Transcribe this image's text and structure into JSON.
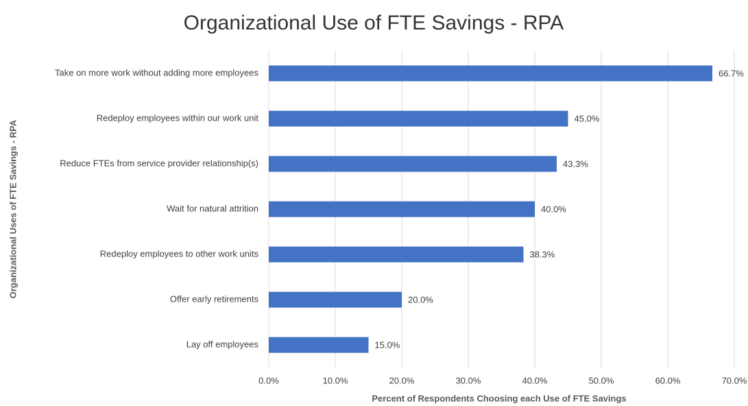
{
  "chart_data": {
    "type": "hbar",
    "title": "Organizational Use of FTE Savings - RPA",
    "x_label": "Percent of Respondents Choosing each Use of FTE Savings",
    "y_label": "Organizational Uses of FTE Savings - RPA",
    "categories": [
      "Take on more work without adding more employees",
      "Redeploy employees within our work unit",
      "Reduce FTEs from service provider relationship(s)",
      "Wait for natural attrition",
      "Redeploy employees to other work units",
      "Offer early retirements",
      "Lay off employees"
    ],
    "values": [
      66.7,
      45.0,
      43.3,
      40.0,
      38.3,
      20.0,
      15.0
    ],
    "value_labels": [
      "66.7%",
      "45.0%",
      "43.3%",
      "40.0%",
      "38.3%",
      "20.0%",
      "15.0%"
    ],
    "color": "#4472c4",
    "xlim": [
      0,
      70
    ],
    "xticks": [
      {
        "value": 0,
        "label": "0.0%"
      },
      {
        "value": 10,
        "label": "10.0%"
      },
      {
        "value": 20,
        "label": "20.0%"
      },
      {
        "value": 30,
        "label": "30.0%"
      },
      {
        "value": 40,
        "label": "40.0%"
      },
      {
        "value": 50,
        "label": "50.0%"
      },
      {
        "value": 60,
        "label": "60.0%"
      },
      {
        "value": 70,
        "label": "70.0%"
      }
    ],
    "grid": true
  }
}
